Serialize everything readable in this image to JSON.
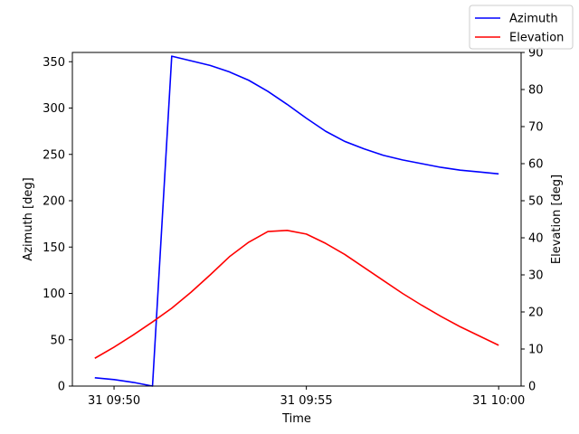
{
  "chart_data": {
    "type": "line",
    "xlabel": "Time",
    "ylabel_left": "Azimuth [deg]",
    "ylabel_right": "Elevation [deg]",
    "x_tick_labels": [
      "31 09:50",
      "31 09:55",
      "31 10:00"
    ],
    "x_tick_values": [
      "09:50",
      "09:55",
      "10:00"
    ],
    "x_range": [
      "09:48:55",
      "10:00:35"
    ],
    "ylim_left": [
      0,
      360
    ],
    "ylim_right": [
      0,
      90
    ],
    "y_ticks_left": [
      0,
      50,
      100,
      150,
      200,
      250,
      300,
      350
    ],
    "y_ticks_right": [
      0,
      10,
      20,
      30,
      40,
      50,
      60,
      70,
      80,
      90
    ],
    "legend_position": "top-right",
    "grid": false,
    "series": [
      {
        "name": "Azimuth",
        "axis": "left",
        "color": "#0000ff",
        "x": [
          "09:49:30",
          "09:50:00",
          "09:50:30",
          "09:51:00",
          "09:51:30",
          "09:52:00",
          "09:52:30",
          "09:53:00",
          "09:53:30",
          "09:54:00",
          "09:54:30",
          "09:55:00",
          "09:55:30",
          "09:56:00",
          "09:56:30",
          "09:57:00",
          "09:57:30",
          "09:58:00",
          "09:58:30",
          "09:59:00",
          "09:59:30",
          "10:00:00"
        ],
        "values": [
          9,
          7,
          4,
          0,
          356,
          351,
          346,
          339,
          330,
          318,
          304,
          289,
          275,
          264,
          256,
          249,
          244,
          240,
          236,
          233,
          231,
          229
        ]
      },
      {
        "name": "Elevation",
        "axis": "right",
        "color": "#ff0000",
        "x": [
          "09:49:30",
          "09:50:00",
          "09:50:30",
          "09:51:00",
          "09:51:30",
          "09:52:00",
          "09:52:30",
          "09:53:00",
          "09:53:30",
          "09:54:00",
          "09:54:30",
          "09:55:00",
          "09:55:30",
          "09:56:00",
          "09:56:30",
          "09:57:00",
          "09:57:30",
          "09:58:00",
          "09:58:30",
          "09:59:00",
          "09:59:30",
          "10:00:00"
        ],
        "values": [
          7.5,
          10.5,
          13.8,
          17.3,
          21.0,
          25.3,
          30.0,
          34.9,
          38.8,
          41.7,
          42.0,
          41.0,
          38.5,
          35.5,
          32.0,
          28.5,
          25.0,
          21.8,
          18.8,
          16.0,
          13.5,
          11.0
        ]
      }
    ]
  }
}
